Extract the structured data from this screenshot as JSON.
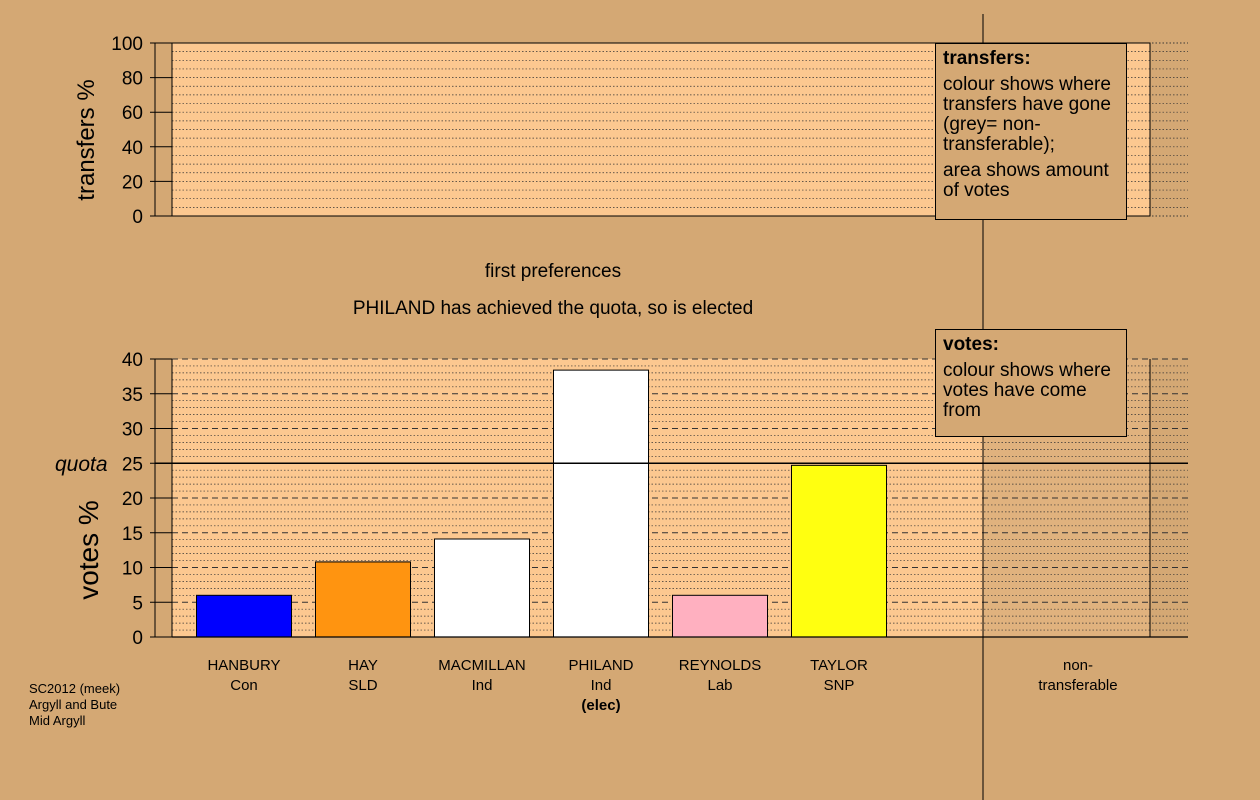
{
  "chart_data": {
    "type": "bar",
    "subtitle": "first preferences",
    "status_text": "PHILAND has achieved the quota, so is elected",
    "transfers_axis": {
      "ylabel": "transfers %",
      "ylim": [
        0,
        100
      ],
      "ticks": [
        0,
        20,
        40,
        60,
        80,
        100
      ]
    },
    "votes_axis": {
      "ylabel": "votes %",
      "ylim": [
        0,
        40
      ],
      "ticks": [
        0,
        5,
        10,
        15,
        20,
        25,
        30,
        35,
        40
      ]
    },
    "quota": {
      "label": "quota",
      "value": 25
    },
    "candidates": [
      {
        "name": "HANBURY",
        "party": "Con",
        "value": 6.0,
        "color": "#0000ff",
        "note": ""
      },
      {
        "name": "HAY",
        "party": "SLD",
        "value": 10.8,
        "color": "#ff9410",
        "note": ""
      },
      {
        "name": "MACMILLAN",
        "party": "Ind",
        "value": 14.1,
        "color": "#ffffff",
        "note": ""
      },
      {
        "name": "PHILAND",
        "party": "Ind",
        "value": 38.4,
        "color": "#ffffff",
        "note": "(elec)"
      },
      {
        "name": "REYNOLDS",
        "party": "Lab",
        "value": 6.0,
        "color": "#ffb0c0",
        "note": ""
      },
      {
        "name": "TAYLOR",
        "party": "SNP",
        "value": 24.7,
        "color": "#ffff10",
        "note": ""
      }
    ],
    "non_transferable_label": "non-\ntransferable"
  },
  "legends": {
    "transfers": {
      "title": "transfers:",
      "p1": "colour shows where transfers have gone (grey= non-transferable);",
      "p2": "area shows amount of votes"
    },
    "votes": {
      "title": "votes:",
      "p1": "colour shows where votes have come from"
    }
  },
  "footer": [
    "SC2012 (meek)",
    "Argyll and Bute",
    "Mid Argyll"
  ],
  "colors": {
    "background": "#d4a874",
    "plot_fill": "#fcc890",
    "nontransferable_shade": "#c8a070"
  }
}
